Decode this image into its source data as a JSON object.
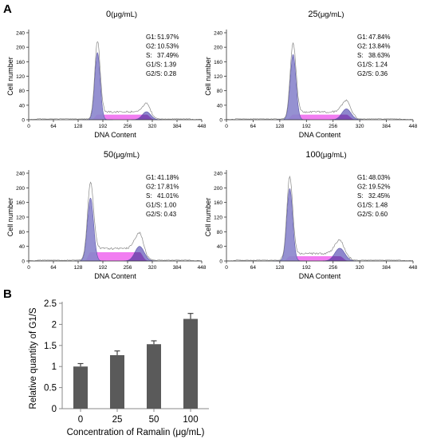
{
  "panel_labels": {
    "a": "A",
    "b": "B"
  },
  "chart_data": [
    {
      "type": "area",
      "title": "0",
      "unit": "(μg/mL)",
      "xlabel": "DNA Content",
      "ylabel": "Cell number",
      "xticks": [
        "0",
        "64",
        "128",
        "192",
        "256",
        "320",
        "384",
        "448"
      ],
      "yticks": [
        "0",
        "40",
        "80",
        "120",
        "160",
        "200",
        "240"
      ],
      "xlim": [
        0,
        448
      ],
      "ylim": [
        0,
        240
      ],
      "g1_peak": {
        "x": 178,
        "height": 185,
        "sd": 7
      },
      "s_phase": {
        "start": 178,
        "end": 305,
        "height": 14
      },
      "g2_peak": {
        "x": 305,
        "height": 22,
        "sd": 11
      },
      "stats": [
        {
          "label": "G1:",
          "value": "51.97%"
        },
        {
          "label": "G2:",
          "value": "10.53%"
        },
        {
          "label": "S:",
          "value": "37.49%"
        },
        {
          "label": "G1/S:",
          "value": "1.39"
        },
        {
          "label": "G2/S:",
          "value": "0.28"
        }
      ]
    },
    {
      "type": "area",
      "title": "25",
      "unit": "(μg/mL)",
      "xlabel": "DNA Content",
      "ylabel": "Cell number",
      "xticks": [
        "0",
        "64",
        "128",
        "192",
        "256",
        "320",
        "384",
        "448"
      ],
      "yticks": [
        "0",
        "40",
        "80",
        "120",
        "160",
        "200",
        "240"
      ],
      "xlim": [
        0,
        448
      ],
      "ylim": [
        0,
        240
      ],
      "g1_peak": {
        "x": 160,
        "height": 180,
        "sd": 7
      },
      "s_phase": {
        "start": 160,
        "end": 288,
        "height": 14
      },
      "g2_peak": {
        "x": 288,
        "height": 30,
        "sd": 11
      },
      "stats": [
        {
          "label": "G1:",
          "value": "47.84%"
        },
        {
          "label": "G2:",
          "value": "13.84%"
        },
        {
          "label": "S:",
          "value": "38.63%"
        },
        {
          "label": "G1/S:",
          "value": "1.24"
        },
        {
          "label": "G2/S:",
          "value": "0.36"
        }
      ]
    },
    {
      "type": "area",
      "title": "50",
      "unit": "(μg/mL)",
      "xlabel": "DNA Content",
      "ylabel": "Cell number",
      "xticks": [
        "0",
        "64",
        "128",
        "192",
        "256",
        "320",
        "384",
        "448"
      ],
      "yticks": [
        "0",
        "40",
        "80",
        "120",
        "160",
        "200",
        "240"
      ],
      "xlim": [
        0,
        448
      ],
      "ylim": [
        0,
        240
      ],
      "g1_peak": {
        "x": 160,
        "height": 172,
        "sd": 8
      },
      "s_phase": {
        "start": 160,
        "end": 287,
        "height": 24
      },
      "g2_peak": {
        "x": 287,
        "height": 40,
        "sd": 12
      },
      "stats": [
        {
          "label": "G1:",
          "value": "41.18%"
        },
        {
          "label": "G2:",
          "value": "17.81%"
        },
        {
          "label": "S:",
          "value": "41.01%"
        },
        {
          "label": "G1/S:",
          "value": "1.00"
        },
        {
          "label": "G2/S:",
          "value": "0.43"
        }
      ]
    },
    {
      "type": "area",
      "title": "100",
      "unit": "(μg/mL)",
      "xlabel": "DNA Content",
      "ylabel": "Cell number",
      "xticks": [
        "0",
        "64",
        "128",
        "192",
        "256",
        "320",
        "384",
        "448"
      ],
      "yticks": [
        "0",
        "40",
        "80",
        "120",
        "160",
        "200",
        "240"
      ],
      "xlim": [
        0,
        448
      ],
      "ylim": [
        0,
        240
      ],
      "g1_peak": {
        "x": 152,
        "height": 198,
        "sd": 7
      },
      "s_phase": {
        "start": 152,
        "end": 272,
        "height": 13
      },
      "g2_peak": {
        "x": 272,
        "height": 35,
        "sd": 12
      },
      "stats": [
        {
          "label": "G1:",
          "value": "48.03%"
        },
        {
          "label": "G2:",
          "value": "19.52%"
        },
        {
          "label": "S:",
          "value": "32.45%"
        },
        {
          "label": "G1/S:",
          "value": "1.48"
        },
        {
          "label": "G2/S:",
          "value": "0.60"
        }
      ]
    },
    {
      "type": "bar",
      "categories": [
        "0",
        "25",
        "50",
        "100"
      ],
      "values": [
        1.0,
        1.27,
        1.53,
        2.13
      ],
      "errors": [
        0.07,
        0.1,
        0.08,
        0.13
      ],
      "xlabel": "Concentration of Ramalin (μg/mL)",
      "ylabel": "Relative quantity of G1/S",
      "ylim": [
        0,
        2.5
      ],
      "yticks": [
        "0",
        "0.5",
        "1",
        "1.5",
        "2",
        "2.5"
      ],
      "grid": false,
      "bar_color": "#5a5a5a"
    }
  ],
  "colors": {
    "g1_fill": "#8a85cc",
    "g1_stroke": "#5b56a8",
    "s_fill": "#ee66ee",
    "g2_fill": "#7a72c4",
    "overlap_fill": "#7b3fb0",
    "trace": "#888888",
    "axis": "#333333"
  }
}
